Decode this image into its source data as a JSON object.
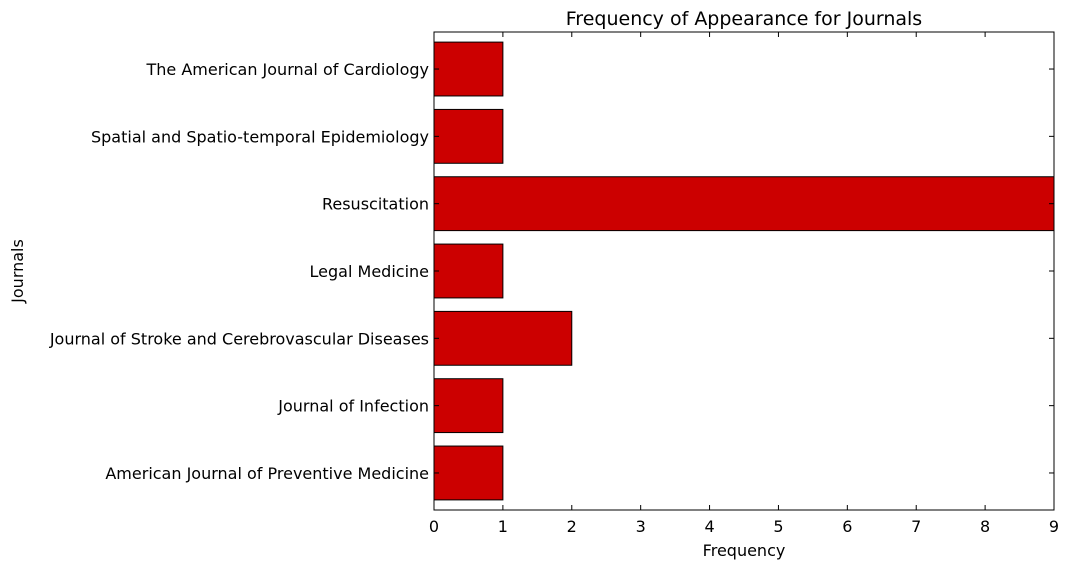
{
  "chart_data": {
    "type": "bar",
    "orientation": "horizontal",
    "title": "Frequency of Appearance for Journals",
    "xlabel": "Frequency",
    "ylabel": "Journals",
    "categories": [
      "American Journal of Preventive Medicine",
      "Journal of Infection",
      "Journal of Stroke and Cerebrovascular Diseases",
      "Legal Medicine",
      "Resuscitation",
      "Spatial and Spatio-temporal Epidemiology",
      "The American Journal of Cardiology"
    ],
    "values": [
      1,
      1,
      2,
      1,
      9,
      1,
      1
    ],
    "xlim": [
      0,
      9
    ],
    "xticks": [
      "0",
      "1",
      "2",
      "3",
      "4",
      "5",
      "6",
      "7",
      "8",
      "9"
    ],
    "grid": false,
    "legend": "none",
    "bar_color": "#cc0000",
    "edge_color": "#000000"
  }
}
